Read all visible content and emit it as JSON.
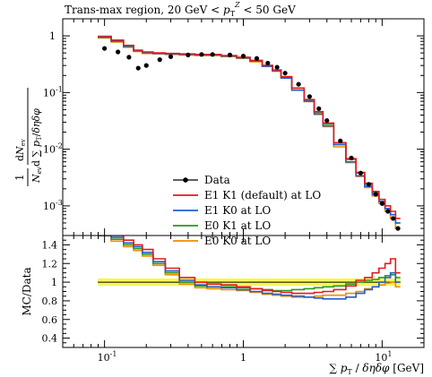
{
  "chart_data": [
    {
      "type": "line",
      "title": "Trans-max region, 20 GeV < p_T^Z < 50 GeV",
      "ylabel": "1/N_ev dN_ev / d∑p_T / dηdφ",
      "xscale": "log",
      "yscale": "log",
      "xlim": [
        0.05,
        20
      ],
      "ylim": [
        0.0003,
        2
      ],
      "y_tick_labels": [
        "10^-3",
        "10^-2",
        "10^-1",
        "1"
      ],
      "legend": {
        "placement": "bottom-left",
        "entries": [
          "Data",
          "E1 K1 (default) at LO",
          "E1 K0 at LO",
          "E0 K1 at LO",
          "E0 K0 at LO"
        ]
      },
      "colors": {
        "Data": "#000000",
        "E1 K1 (default) at LO": "#e41a1c",
        "E1 K0 at LO": "#1f5fd6",
        "E0 K1 at LO": "#2a9a1a",
        "E0 K0 at LO": "#f08c00"
      },
      "x": [
        0.1,
        0.125,
        0.15,
        0.175,
        0.2,
        0.25,
        0.3,
        0.4,
        0.5,
        0.6,
        0.8,
        1.0,
        1.25,
        1.5,
        1.75,
        2.0,
        2.5,
        3.0,
        3.5,
        4.0,
        5.0,
        6.0,
        7.0,
        8.0,
        9.0,
        10.0,
        11.0,
        12.0,
        13.0
      ],
      "series": [
        {
          "name": "Data",
          "values": [
            0.6,
            0.52,
            0.42,
            0.27,
            0.3,
            0.38,
            0.43,
            0.46,
            0.47,
            0.47,
            0.46,
            0.44,
            0.4,
            0.33,
            0.28,
            0.22,
            0.14,
            0.085,
            0.052,
            0.032,
            0.014,
            0.007,
            0.0038,
            0.0024,
            0.0016,
            0.0011,
            0.0008,
            0.0006,
            0.0004
          ]
        },
        {
          "name": "E1 K1 (default) at LO",
          "values": [
            0.98,
            0.84,
            0.68,
            0.56,
            0.52,
            0.5,
            0.49,
            0.48,
            0.47,
            0.47,
            0.45,
            0.42,
            0.37,
            0.3,
            0.25,
            0.19,
            0.12,
            0.075,
            0.046,
            0.029,
            0.013,
            0.0068,
            0.0039,
            0.0025,
            0.0018,
            0.0013,
            0.001,
            0.0008,
            0.0006
          ]
        },
        {
          "name": "E1 K0 at LO",
          "values": [
            0.95,
            0.82,
            0.66,
            0.55,
            0.51,
            0.49,
            0.48,
            0.47,
            0.46,
            0.46,
            0.44,
            0.41,
            0.36,
            0.29,
            0.24,
            0.18,
            0.11,
            0.07,
            0.042,
            0.026,
            0.012,
            0.006,
            0.0034,
            0.0022,
            0.0016,
            0.0012,
            0.0009,
            0.0007,
            0.0005
          ]
        },
        {
          "name": "E0 K1 at LO",
          "values": [
            0.94,
            0.8,
            0.64,
            0.54,
            0.5,
            0.49,
            0.48,
            0.47,
            0.46,
            0.46,
            0.44,
            0.41,
            0.36,
            0.3,
            0.25,
            0.19,
            0.12,
            0.074,
            0.045,
            0.028,
            0.013,
            0.0066,
            0.0038,
            0.0024,
            0.0017,
            0.0012,
            0.0009,
            0.0007,
            0.0005
          ]
        },
        {
          "name": "E0 K0 at LO",
          "values": [
            0.92,
            0.78,
            0.63,
            0.53,
            0.49,
            0.48,
            0.47,
            0.46,
            0.45,
            0.45,
            0.43,
            0.4,
            0.35,
            0.29,
            0.24,
            0.18,
            0.11,
            0.069,
            0.041,
            0.025,
            0.011,
            0.0058,
            0.0033,
            0.0021,
            0.0015,
            0.0011,
            0.0008,
            0.0006,
            0.0004
          ]
        }
      ]
    },
    {
      "type": "line",
      "ylabel": "MC/Data",
      "xlabel": "∑ p_T / δηδφ [GeV]",
      "xscale": "log",
      "xlim": [
        0.05,
        20
      ],
      "ylim": [
        0.3,
        1.5
      ],
      "y_tick_labels": [
        "0.4",
        "0.6",
        "0.8",
        "1",
        "1.2",
        "1.4"
      ],
      "x_tick_labels": [
        "10^-1",
        "1",
        "10^1"
      ],
      "data_band": {
        "lower": 0.96,
        "upper": 1.04
      },
      "x": [
        0.1,
        0.125,
        0.15,
        0.175,
        0.2,
        0.25,
        0.3,
        0.4,
        0.5,
        0.6,
        0.8,
        1.0,
        1.25,
        1.5,
        1.75,
        2.0,
        2.5,
        3.0,
        3.5,
        4.0,
        5.0,
        6.0,
        7.0,
        8.0,
        9.0,
        10.0,
        11.0,
        12.0,
        13.0
      ],
      "series": [
        {
          "name": "E1 K1 (default) at LO",
          "values": [
            1.6,
            1.5,
            1.45,
            1.4,
            1.35,
            1.25,
            1.15,
            1.05,
            1.0,
            0.98,
            0.97,
            0.95,
            0.93,
            0.91,
            0.9,
            0.89,
            0.88,
            0.88,
            0.89,
            0.9,
            0.92,
            0.96,
            1.02,
            1.05,
            1.1,
            1.15,
            1.2,
            1.25,
            1.1
          ]
        },
        {
          "name": "E1 K0 at LO",
          "values": [
            1.55,
            1.48,
            1.42,
            1.38,
            1.32,
            1.22,
            1.12,
            1.02,
            0.97,
            0.95,
            0.94,
            0.92,
            0.9,
            0.88,
            0.87,
            0.86,
            0.85,
            0.84,
            0.83,
            0.82,
            0.82,
            0.84,
            0.88,
            0.92,
            0.95,
            1.0,
            1.05,
            1.1,
            1.0
          ]
        },
        {
          "name": "E0 K1 at LO",
          "values": [
            1.55,
            1.46,
            1.4,
            1.36,
            1.3,
            1.2,
            1.1,
            1.0,
            0.96,
            0.95,
            0.95,
            0.94,
            0.93,
            0.92,
            0.91,
            0.91,
            0.92,
            0.93,
            0.94,
            0.95,
            0.96,
            0.98,
            1.0,
            1.02,
            1.03,
            1.05,
            1.07,
            1.08,
            1.05
          ]
        },
        {
          "name": "E0 K0 at LO",
          "values": [
            1.52,
            1.44,
            1.38,
            1.34,
            1.28,
            1.18,
            1.08,
            0.98,
            0.94,
            0.93,
            0.92,
            0.91,
            0.89,
            0.87,
            0.86,
            0.85,
            0.84,
            0.84,
            0.85,
            0.86,
            0.86,
            0.88,
            0.9,
            0.93,
            0.95,
            0.97,
            0.99,
            1.0,
            0.95
          ]
        }
      ]
    }
  ]
}
